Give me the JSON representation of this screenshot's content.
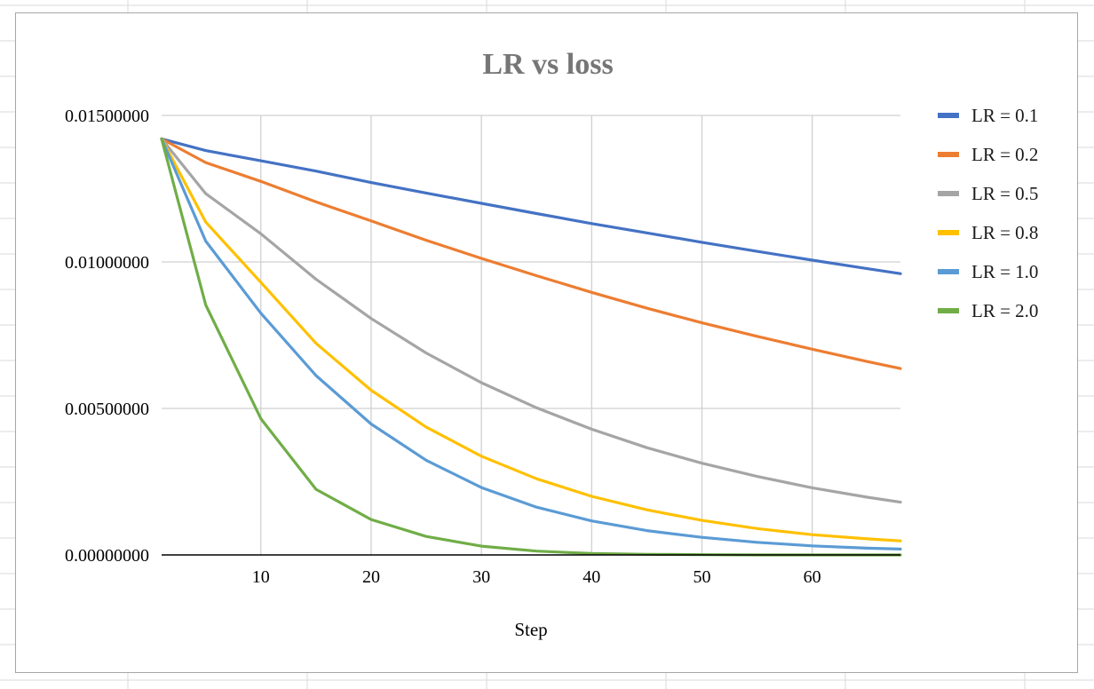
{
  "chart_data": {
    "type": "line",
    "title": "LR vs loss",
    "xlabel": "Step",
    "ylabel": "",
    "xlim": [
      1,
      68
    ],
    "ylim": [
      0,
      0.015
    ],
    "x_ticks": [
      10,
      20,
      30,
      40,
      50,
      60
    ],
    "x_tick_labels": [
      "10",
      "20",
      "30",
      "40",
      "50",
      "60"
    ],
    "y_ticks": [
      0,
      0.005,
      0.01,
      0.015
    ],
    "y_tick_labels": [
      "0.00000000",
      "0.00500000",
      "0.01000000",
      "0.01500000"
    ],
    "grid": true,
    "legend_position": "right",
    "x": [
      1,
      5,
      10,
      15,
      20,
      25,
      30,
      35,
      40,
      45,
      50,
      55,
      60,
      65,
      68
    ],
    "series": [
      {
        "name": "LR = 0.1",
        "color": "#4472c4",
        "values": [
          0.0142,
          0.0138,
          0.01345,
          0.0131,
          0.01271,
          0.01235,
          0.012,
          0.01165,
          0.01131,
          0.01099,
          0.01067,
          0.01036,
          0.01006,
          0.00977,
          0.0096
        ]
      },
      {
        "name": "LR = 0.2",
        "color": "#ed7d31",
        "values": [
          0.0142,
          0.01339,
          0.01275,
          0.01205,
          0.0114,
          0.01074,
          0.01012,
          0.00953,
          0.00896,
          0.00842,
          0.00792,
          0.00746,
          0.00702,
          0.0066,
          0.00636
        ]
      },
      {
        "name": "LR = 0.5",
        "color": "#a5a5a5",
        "values": [
          0.0142,
          0.01233,
          0.01096,
          0.00941,
          0.00807,
          0.00689,
          0.00588,
          0.00502,
          0.00429,
          0.00366,
          0.00313,
          0.00268,
          0.00229,
          0.00197,
          0.0018
        ]
      },
      {
        "name": "LR = 0.8",
        "color": "#ffc000",
        "values": [
          0.0142,
          0.01136,
          0.0093,
          0.00722,
          0.00562,
          0.00436,
          0.00337,
          0.0026,
          0.002,
          0.00154,
          0.00118,
          0.0009,
          0.00069,
          0.00055,
          0.00048
        ]
      },
      {
        "name": "LR = 1.0",
        "color": "#5b9bd5",
        "values": [
          0.0142,
          0.01071,
          0.00825,
          0.00612,
          0.00447,
          0.00323,
          0.0023,
          0.00163,
          0.00116,
          0.00083,
          0.0006,
          0.00043,
          0.00031,
          0.00023,
          0.0002
        ]
      },
      {
        "name": "LR = 2.0",
        "color": "#70ad47",
        "values": [
          0.0142,
          0.00853,
          0.00465,
          0.00224,
          0.00121,
          0.00063,
          0.0003,
          0.00013,
          5e-05,
          2e-05,
          1e-05,
          0.0,
          0.0,
          0.0,
          0.0
        ]
      }
    ]
  }
}
